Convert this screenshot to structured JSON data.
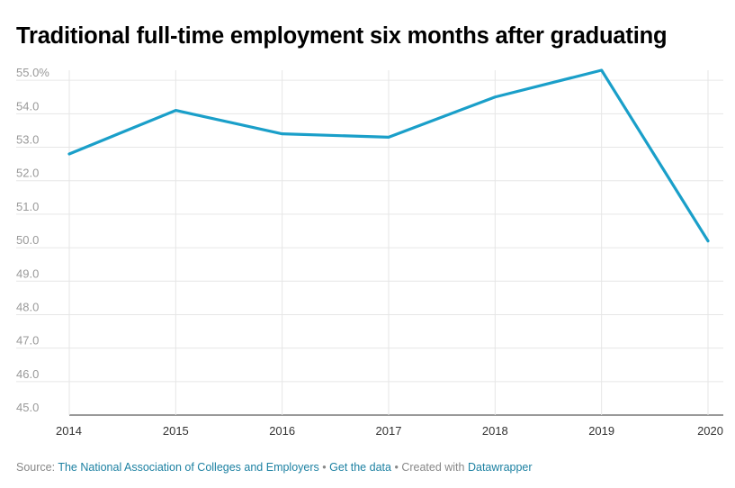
{
  "chart_data": {
    "type": "line",
    "title": "Traditional full-time employment six months after graduating",
    "xlabel": "",
    "ylabel": "",
    "x": [
      "2014",
      "2015",
      "2016",
      "2017",
      "2018",
      "2019",
      "2020"
    ],
    "series": [
      {
        "name": "Traditional full-time employment",
        "values": [
          52.8,
          54.1,
          53.4,
          53.3,
          54.5,
          55.3,
          50.2
        ]
      }
    ],
    "ylim": [
      45.0,
      55.3
    ],
    "yticks": [
      45.0,
      46.0,
      47.0,
      48.0,
      49.0,
      50.0,
      51.0,
      52.0,
      53.0,
      54.0,
      55.0
    ],
    "ytick_labels": [
      "45.0",
      "46.0",
      "47.0",
      "48.0",
      "49.0",
      "50.0",
      "51.0",
      "52.0",
      "53.0",
      "54.0",
      "55.0%"
    ],
    "grid": true,
    "line_color": "#1a9fc9"
  },
  "footer": {
    "source_prefix": "Source:",
    "source_link": "The National Association of Colleges and Employers",
    "bullet": "•",
    "get_data": "Get the data",
    "created_with": "Created with",
    "tool": "Datawrapper"
  }
}
